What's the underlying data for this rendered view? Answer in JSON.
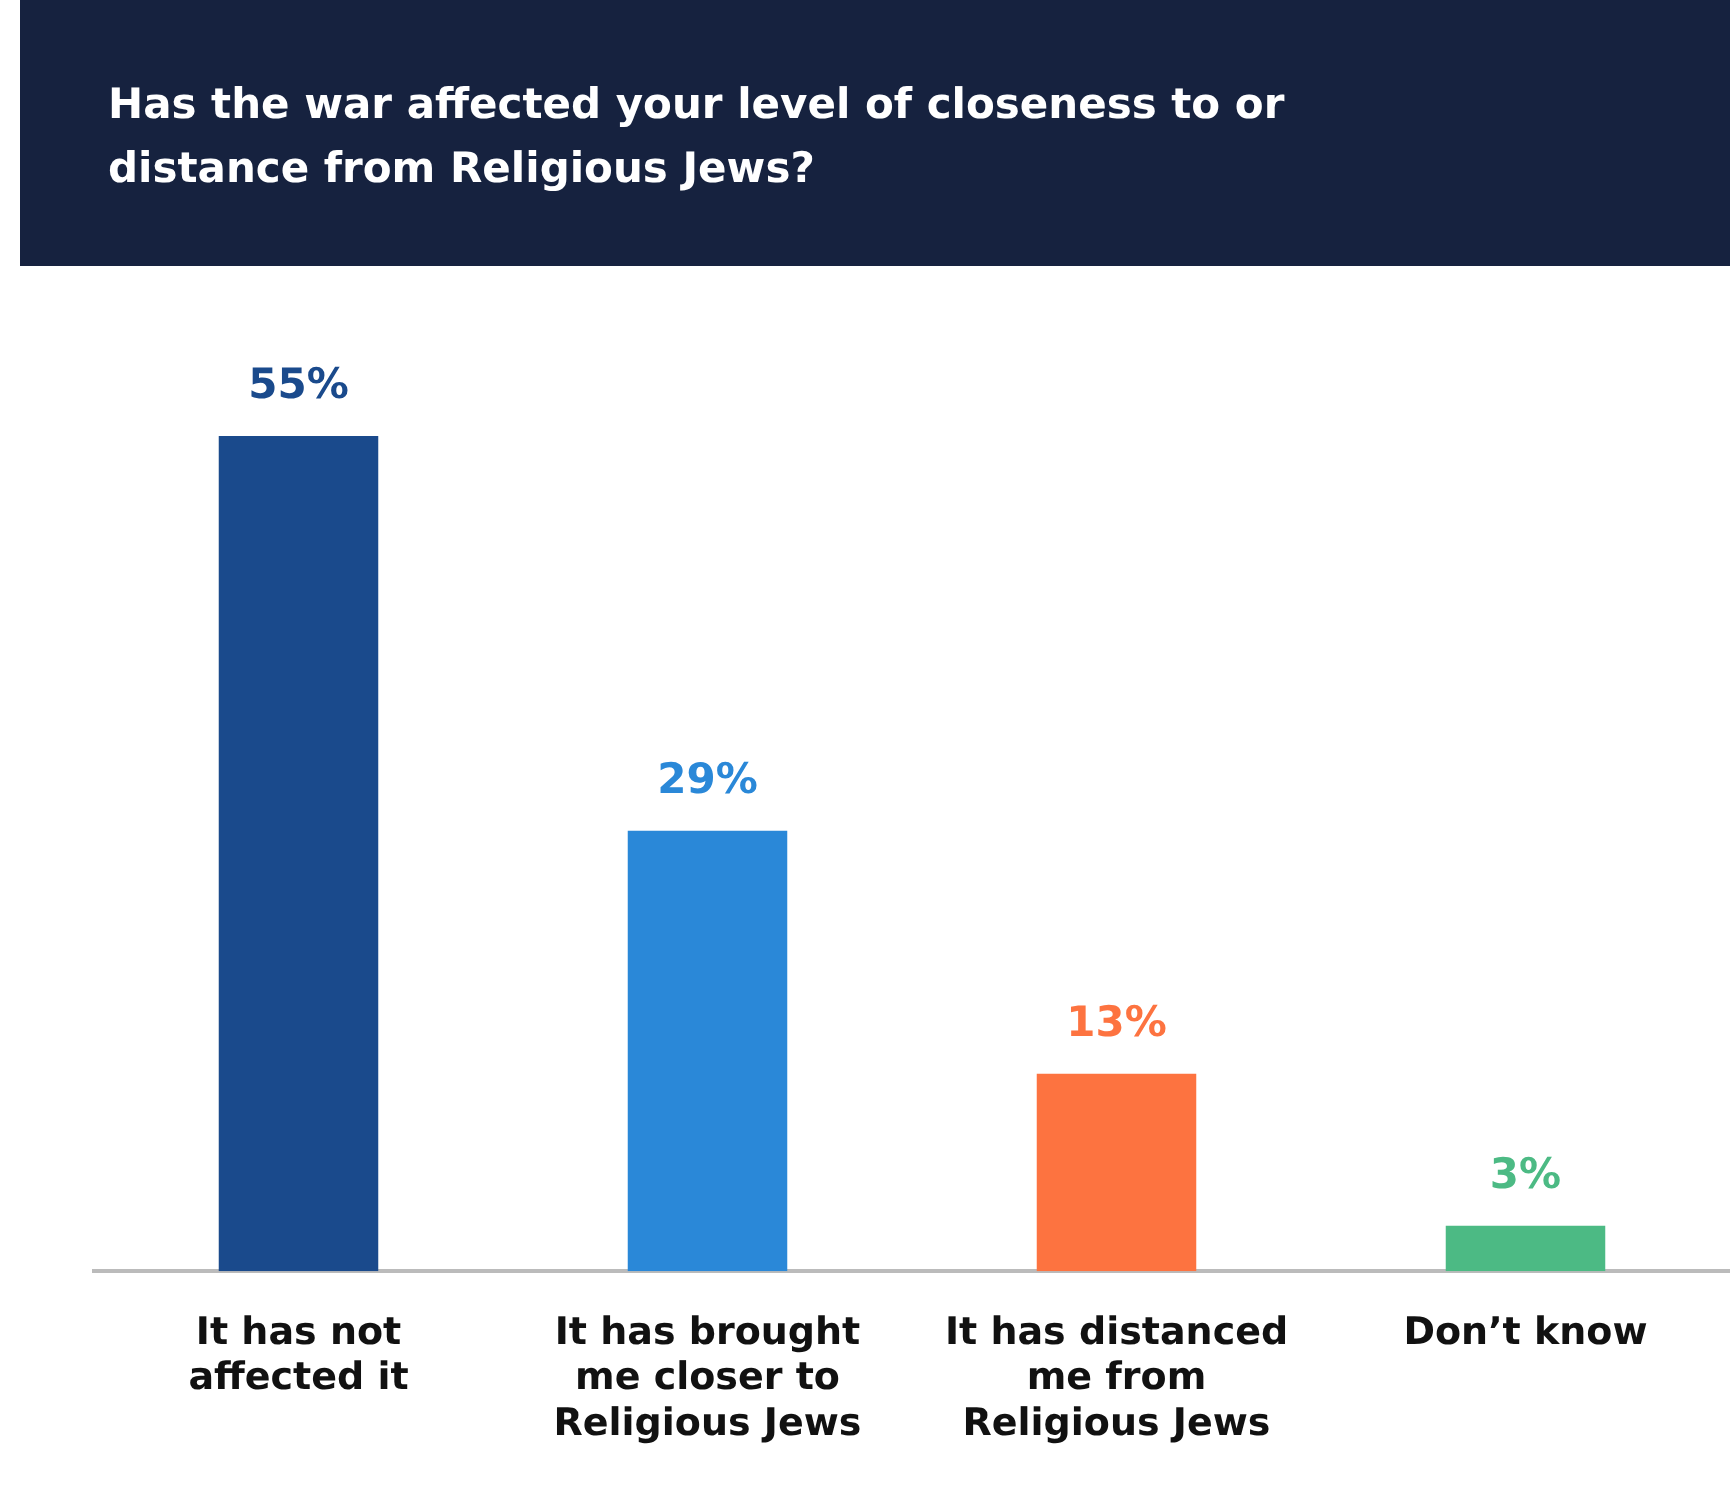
{
  "chart_data": {
    "type": "bar",
    "title": "Has the war affected your level of closeness to or distance from Religious Jews?",
    "categories": [
      "It has not affected it",
      "It has brought me closer to Religious Jews",
      "It has distanced me from Religious Jews",
      "Don’t know"
    ],
    "values": [
      55,
      29,
      13,
      3
    ],
    "colors": [
      "#1a4a8c",
      "#2a88d8",
      "#fd7340",
      "#4cba84"
    ],
    "value_labels": [
      "55%",
      "29%",
      "13%",
      "3%"
    ],
    "grid": false,
    "legend": false
  }
}
